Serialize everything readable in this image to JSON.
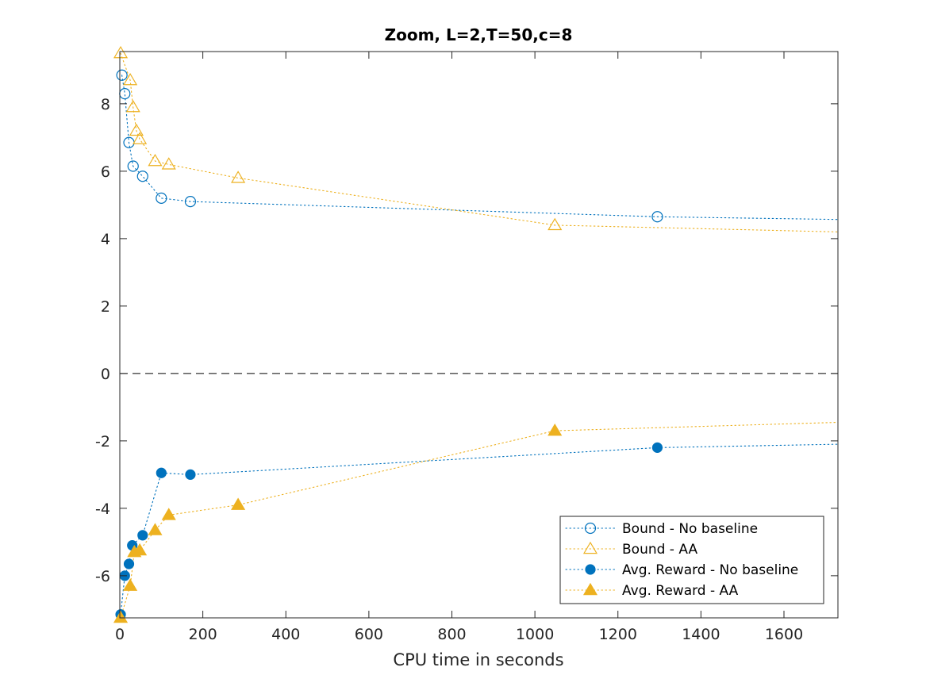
{
  "chart_data": {
    "type": "line",
    "title": "Zoom, L=2,T=50,c=8",
    "xlabel": "CPU time in seconds",
    "ylabel": "",
    "xlim": [
      0,
      1730
    ],
    "ylim": [
      -7.25,
      9.55
    ],
    "xticks": [
      0,
      200,
      400,
      600,
      800,
      1000,
      1200,
      1400,
      1600
    ],
    "yticks": [
      -6,
      -4,
      -2,
      0,
      2,
      4,
      6,
      8
    ],
    "xtick_labels": [
      "0",
      "200",
      "400",
      "600",
      "800",
      "1000",
      "1200",
      "1400",
      "1600"
    ],
    "ytick_labels": [
      "-6",
      "-4",
      "-2",
      "0",
      "2",
      "4",
      "6",
      "8"
    ],
    "reference_line": {
      "y": 0,
      "style": "dashed",
      "color": "#000000"
    },
    "legend_position": "bottom-right",
    "series": [
      {
        "name": "Bound - No baseline",
        "color": "#0072BD",
        "marker": "circle-open",
        "line": "dotted",
        "x": [
          5,
          12,
          22,
          32,
          55,
          100,
          170,
          1295,
          1730
        ],
        "y": [
          8.85,
          8.3,
          6.85,
          6.15,
          5.85,
          5.2,
          5.1,
          4.65,
          4.57
        ]
      },
      {
        "name": "Bound - AA",
        "color": "#EDB120",
        "marker": "triangle-open",
        "line": "dotted",
        "x": [
          2,
          25,
          32,
          40,
          48,
          85,
          118,
          285,
          1048,
          1730
        ],
        "y": [
          9.5,
          8.7,
          7.9,
          7.2,
          6.95,
          6.3,
          6.2,
          5.8,
          4.4,
          4.2
        ]
      },
      {
        "name": "Avg. Reward - No baseline",
        "color": "#0072BD",
        "marker": "circle-filled",
        "line": "dotted",
        "x": [
          2,
          12,
          22,
          30,
          55,
          100,
          170,
          1295,
          1730
        ],
        "y": [
          -7.15,
          -6.0,
          -5.65,
          -5.1,
          -4.8,
          -2.95,
          -3.0,
          -2.2,
          -2.1
        ]
      },
      {
        "name": "Avg. Reward - AA",
        "color": "#EDB120",
        "marker": "triangle-filled",
        "line": "dotted",
        "x": [
          2,
          25,
          35,
          48,
          85,
          118,
          285,
          1048,
          1730
        ],
        "y": [
          -7.25,
          -6.3,
          -5.3,
          -5.25,
          -4.65,
          -4.2,
          -3.9,
          -1.7,
          -1.45
        ]
      }
    ]
  }
}
